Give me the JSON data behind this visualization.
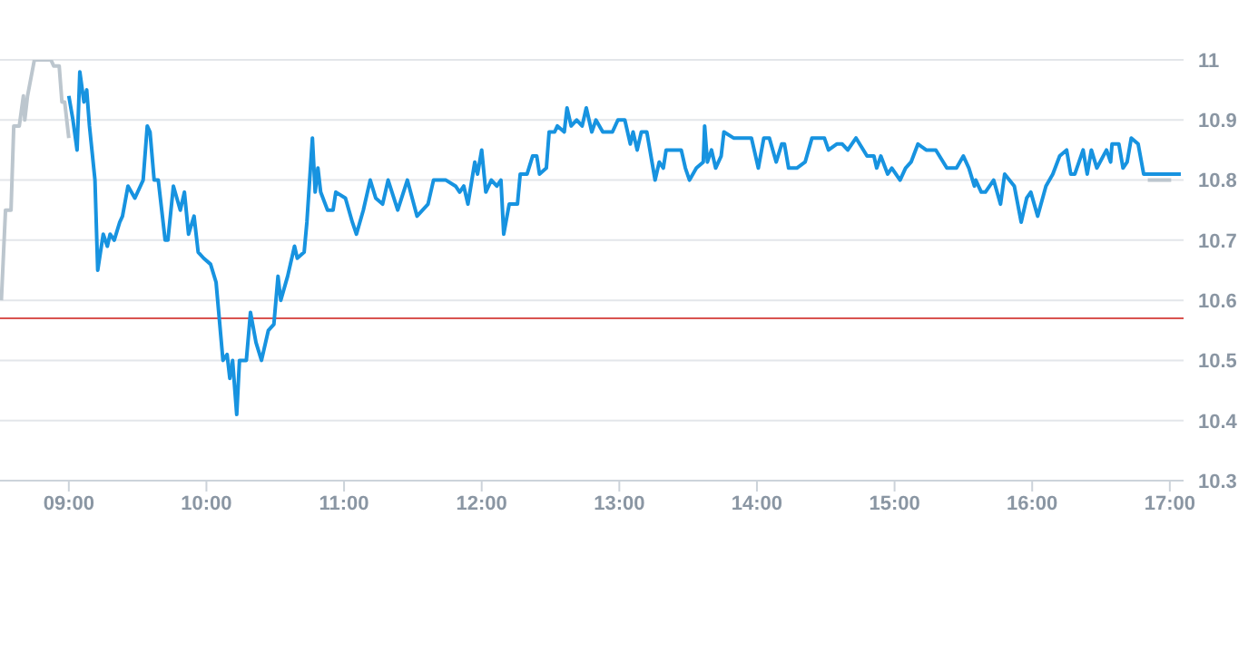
{
  "chart_data": {
    "type": "line",
    "xlim": [
      8.5,
      17.1
    ],
    "ylim": [
      10.3,
      11
    ],
    "xticks": [
      {
        "value": 9,
        "label": "09:00"
      },
      {
        "value": 10,
        "label": "10:00"
      },
      {
        "value": 11,
        "label": "11:00"
      },
      {
        "value": 12,
        "label": "12:00"
      },
      {
        "value": 13,
        "label": "13:00"
      },
      {
        "value": 14,
        "label": "14:00"
      },
      {
        "value": 15,
        "label": "15:00"
      },
      {
        "value": 16,
        "label": "16:00"
      },
      {
        "value": 17,
        "label": "17:00"
      }
    ],
    "yticks": [
      10.3,
      10.4,
      10.5,
      10.6,
      10.7,
      10.8,
      10.9,
      11
    ],
    "grid": "y",
    "marker": "none",
    "line_style": "solid",
    "ref_lines": [
      {
        "axis": "y",
        "value": 10.57,
        "color": "#d9534f"
      }
    ],
    "series": [
      {
        "color": "#bcc6ce",
        "x": [
          8.51,
          8.54,
          8.58,
          8.6,
          8.64,
          8.67,
          8.68,
          8.7,
          8.75,
          8.87,
          8.89,
          8.93,
          8.95,
          8.97,
          9.0
        ],
        "values": [
          10.6,
          10.75,
          10.75,
          10.89,
          10.89,
          10.94,
          10.9,
          10.94,
          11.0,
          11.0,
          10.99,
          10.99,
          10.93,
          10.93,
          10.87
        ]
      },
      {
        "color": "#bcc6ce",
        "x": [
          16.84,
          17.01
        ],
        "values": [
          10.8,
          10.8
        ]
      },
      {
        "color": "#1793e0",
        "x": [
          9.0,
          9.03,
          9.06,
          9.08,
          9.11,
          9.13,
          9.15,
          9.19,
          9.21,
          9.25,
          9.28,
          9.3,
          9.33,
          9.37,
          9.39,
          9.43,
          9.48,
          9.54,
          9.57,
          9.59,
          9.62,
          9.65,
          9.68,
          9.7,
          9.72,
          9.76,
          9.81,
          9.84,
          9.87,
          9.91,
          9.94,
          9.98,
          10.03,
          10.07,
          10.12,
          10.15,
          10.17,
          10.19,
          10.22,
          10.24,
          10.29,
          10.32,
          10.36,
          10.4,
          10.45,
          10.49,
          10.52,
          10.54,
          10.59,
          10.61,
          10.64,
          10.66,
          10.71,
          10.73,
          10.77,
          10.79,
          10.81,
          10.83,
          10.88,
          10.92,
          10.94,
          11.01,
          11.06,
          11.09,
          11.14,
          11.19,
          11.23,
          11.28,
          11.32,
          11.39,
          11.46,
          11.53,
          11.61,
          11.65,
          11.74,
          11.81,
          11.84,
          11.87,
          11.9,
          11.95,
          11.97,
          12.0,
          12.03,
          12.07,
          12.11,
          12.14,
          12.16,
          12.2,
          12.26,
          12.28,
          12.33,
          12.37,
          12.4,
          12.42,
          12.47,
          12.49,
          12.53,
          12.55,
          12.6,
          12.62,
          12.65,
          12.69,
          12.73,
          12.76,
          12.8,
          12.83,
          12.88,
          12.95,
          12.99,
          13.04,
          13.08,
          13.1,
          13.13,
          13.16,
          13.2,
          13.26,
          13.29,
          13.32,
          13.34,
          13.45,
          13.48,
          13.51,
          13.56,
          13.61,
          13.62,
          13.64,
          13.67,
          13.7,
          13.74,
          13.76,
          13.83,
          13.96,
          14.01,
          14.05,
          14.09,
          14.14,
          14.18,
          14.2,
          14.23,
          14.29,
          14.35,
          14.4,
          14.49,
          14.52,
          14.58,
          14.62,
          14.66,
          14.72,
          14.8,
          14.85,
          14.87,
          14.9,
          14.95,
          14.98,
          15.04,
          15.08,
          15.12,
          15.17,
          15.23,
          15.3,
          15.38,
          15.45,
          15.5,
          15.54,
          15.58,
          15.59,
          15.63,
          15.66,
          15.72,
          15.77,
          15.8,
          15.87,
          15.92,
          15.96,
          15.99,
          16.04,
          16.1,
          16.15,
          16.2,
          16.25,
          16.28,
          16.31,
          16.37,
          16.4,
          16.43,
          16.47,
          16.54,
          16.57,
          16.58,
          16.63,
          16.66,
          16.69,
          16.72,
          16.77,
          16.81,
          16.84,
          17.08
        ],
        "values": [
          10.94,
          10.9,
          10.85,
          10.98,
          10.93,
          10.95,
          10.89,
          10.8,
          10.65,
          10.71,
          10.69,
          10.71,
          10.7,
          10.73,
          10.74,
          10.79,
          10.77,
          10.8,
          10.89,
          10.88,
          10.8,
          10.8,
          10.74,
          10.7,
          10.7,
          10.79,
          10.75,
          10.78,
          10.71,
          10.74,
          10.68,
          10.67,
          10.66,
          10.63,
          10.5,
          10.51,
          10.47,
          10.5,
          10.41,
          10.5,
          10.5,
          10.58,
          10.53,
          10.5,
          10.55,
          10.56,
          10.64,
          10.6,
          10.64,
          10.66,
          10.69,
          10.67,
          10.68,
          10.73,
          10.87,
          10.78,
          10.82,
          10.78,
          10.75,
          10.75,
          10.78,
          10.77,
          10.73,
          10.71,
          10.75,
          10.8,
          10.77,
          10.76,
          10.8,
          10.75,
          10.8,
          10.74,
          10.76,
          10.8,
          10.8,
          10.79,
          10.78,
          10.79,
          10.76,
          10.83,
          10.81,
          10.85,
          10.78,
          10.8,
          10.79,
          10.8,
          10.71,
          10.76,
          10.76,
          10.81,
          10.81,
          10.84,
          10.84,
          10.81,
          10.82,
          10.88,
          10.88,
          10.89,
          10.88,
          10.92,
          10.89,
          10.9,
          10.89,
          10.92,
          10.88,
          10.9,
          10.88,
          10.88,
          10.9,
          10.9,
          10.86,
          10.88,
          10.85,
          10.88,
          10.88,
          10.8,
          10.83,
          10.82,
          10.85,
          10.85,
          10.82,
          10.8,
          10.82,
          10.83,
          10.89,
          10.83,
          10.85,
          10.82,
          10.84,
          10.88,
          10.87,
          10.87,
          10.82,
          10.87,
          10.87,
          10.83,
          10.86,
          10.86,
          10.82,
          10.82,
          10.83,
          10.87,
          10.87,
          10.85,
          10.86,
          10.86,
          10.85,
          10.87,
          10.84,
          10.84,
          10.82,
          10.84,
          10.81,
          10.82,
          10.8,
          10.82,
          10.83,
          10.86,
          10.85,
          10.85,
          10.82,
          10.82,
          10.84,
          10.82,
          10.79,
          10.8,
          10.78,
          10.78,
          10.8,
          10.76,
          10.81,
          10.79,
          10.73,
          10.77,
          10.78,
          10.74,
          10.79,
          10.81,
          10.84,
          10.85,
          10.81,
          10.81,
          10.85,
          10.81,
          10.85,
          10.82,
          10.85,
          10.83,
          10.86,
          10.86,
          10.82,
          10.83,
          10.87,
          10.86,
          10.81,
          10.81,
          10.81
        ]
      }
    ]
  }
}
